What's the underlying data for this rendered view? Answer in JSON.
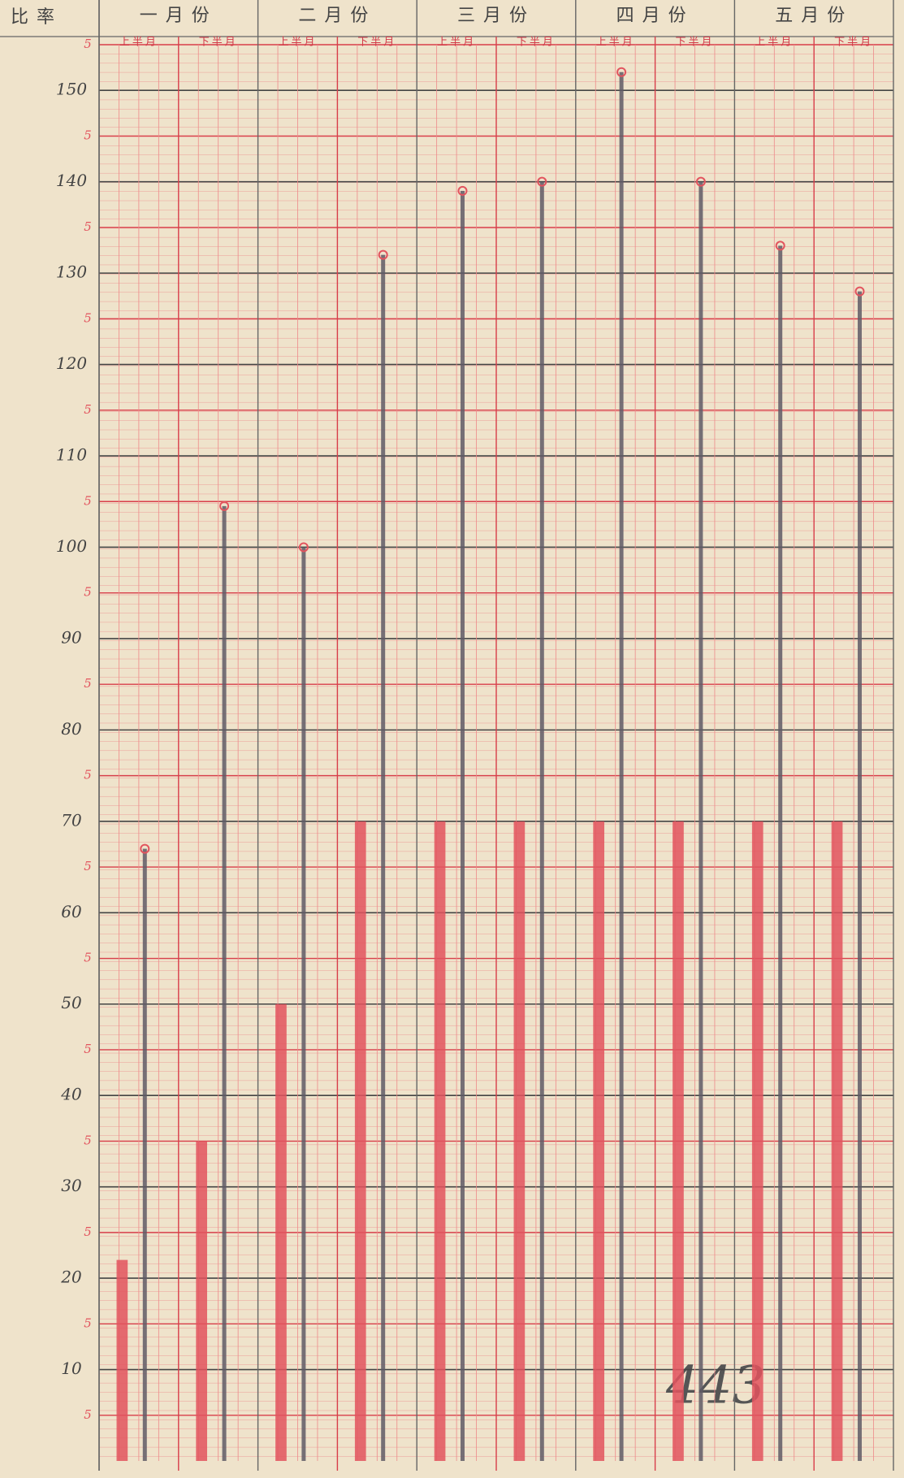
{
  "chart_data": {
    "type": "bar",
    "y_label": "比率",
    "months": [
      "一月份",
      "二月份",
      "三月份",
      "四月份",
      "五月份"
    ],
    "categories": [
      "上半月",
      "下半月",
      "上半月",
      "下半月",
      "上半月",
      "下半月",
      "上半月",
      "下半月",
      "上半月",
      "下半月"
    ],
    "series": [
      {
        "color": "#e2545e",
        "values": [
          22,
          35,
          50,
          70,
          70,
          70,
          70,
          70,
          70,
          70
        ]
      },
      {
        "color": "#5f5a66",
        "values": [
          67,
          104.5,
          100,
          132,
          139,
          140,
          152,
          140,
          133,
          128
        ]
      }
    ],
    "ylim": [
      0,
      155
    ],
    "yticks": [
      10,
      20,
      30,
      40,
      50,
      60,
      70,
      80,
      90,
      100,
      110,
      120,
      130,
      140,
      150
    ],
    "minor_ticks": [
      {
        "value": 5,
        "label": "5"
      },
      {
        "value": 15,
        "label": "5"
      },
      {
        "value": 25,
        "label": "5"
      },
      {
        "value": 35,
        "label": "5"
      },
      {
        "value": 45,
        "label": "5"
      },
      {
        "value": 55,
        "label": "5"
      },
      {
        "value": 65,
        "label": "5"
      },
      {
        "value": 75,
        "label": "5"
      },
      {
        "value": 85,
        "label": "5"
      },
      {
        "value": 95,
        "label": "5"
      },
      {
        "value": 105,
        "label": "5"
      },
      {
        "value": 115,
        "label": "5"
      },
      {
        "value": 125,
        "label": "5"
      },
      {
        "value": 135,
        "label": "5"
      },
      {
        "value": 145,
        "label": "5"
      },
      {
        "value": 155,
        "label": "5"
      }
    ],
    "annotations": [
      "443"
    ],
    "grid": true
  }
}
